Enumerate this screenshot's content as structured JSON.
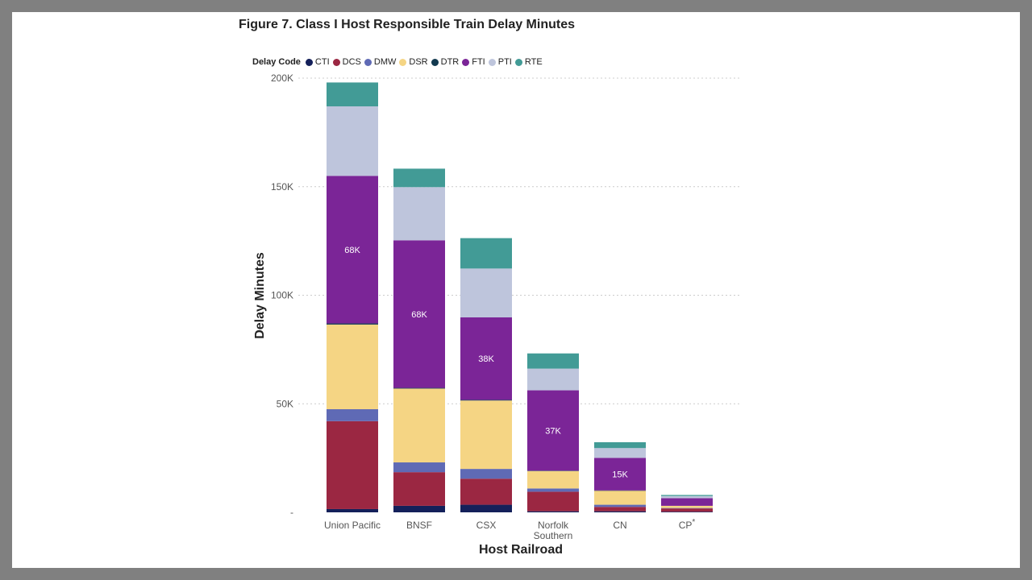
{
  "chart_data": {
    "type": "bar",
    "stacked": true,
    "title": "Figure 7. Class I Host Responsible Train Delay Minutes",
    "xlabel": "Host Railroad",
    "ylabel": "Delay Minutes",
    "ylim": [
      0,
      200000
    ],
    "yticks": [
      {
        "value": 0,
        "label": "-"
      },
      {
        "value": 50000,
        "label": "50K"
      },
      {
        "value": 100000,
        "label": "100K"
      },
      {
        "value": 150000,
        "label": "150K"
      },
      {
        "value": 200000,
        "label": "200K"
      }
    ],
    "grid": true,
    "legend_title": "Delay Code",
    "legend_position": "top-left",
    "categories": [
      {
        "name": "Union Pacific",
        "line2": "",
        "sup": ""
      },
      {
        "name": "BNSF",
        "line2": "",
        "sup": ""
      },
      {
        "name": "CSX",
        "line2": "",
        "sup": ""
      },
      {
        "name": "Norfolk",
        "line2": "Southern",
        "sup": ""
      },
      {
        "name": "CN",
        "line2": "",
        "sup": ""
      },
      {
        "name": "CP",
        "line2": "",
        "sup": "*"
      }
    ],
    "series": [
      {
        "name": "CTI",
        "color": "#14205a",
        "values": [
          1500,
          3000,
          3500,
          500,
          500,
          300
        ]
      },
      {
        "name": "DCS",
        "color": "#9b2742",
        "values": [
          40500,
          15500,
          12000,
          9000,
          2000,
          1500
        ]
      },
      {
        "name": "DMW",
        "color": "#5f6ab5",
        "values": [
          5500,
          4500,
          4500,
          1500,
          1000,
          200
        ]
      },
      {
        "name": "DSR",
        "color": "#f5d584",
        "values": [
          39000,
          34000,
          31500,
          8000,
          6500,
          1000
        ]
      },
      {
        "name": "DTR",
        "color": "#12394f",
        "values": [
          500,
          300,
          300,
          200,
          100,
          0
        ]
      },
      {
        "name": "FTI",
        "color": "#7b2597",
        "values": [
          68000,
          68000,
          38000,
          37000,
          15000,
          3500
        ]
      },
      {
        "name": "PTI",
        "color": "#bec5dc",
        "values": [
          32000,
          24500,
          22500,
          10000,
          4500,
          1000
        ]
      },
      {
        "name": "RTE",
        "color": "#429b96",
        "values": [
          11000,
          8500,
          14000,
          7000,
          2700,
          500
        ]
      }
    ],
    "data_labels": [
      {
        "category_index": 0,
        "series": "FTI",
        "text": "68K"
      },
      {
        "category_index": 1,
        "series": "FTI",
        "text": "68K"
      },
      {
        "category_index": 2,
        "series": "FTI",
        "text": "38K"
      },
      {
        "category_index": 3,
        "series": "FTI",
        "text": "37K"
      },
      {
        "category_index": 4,
        "series": "FTI",
        "text": "15K"
      }
    ]
  }
}
